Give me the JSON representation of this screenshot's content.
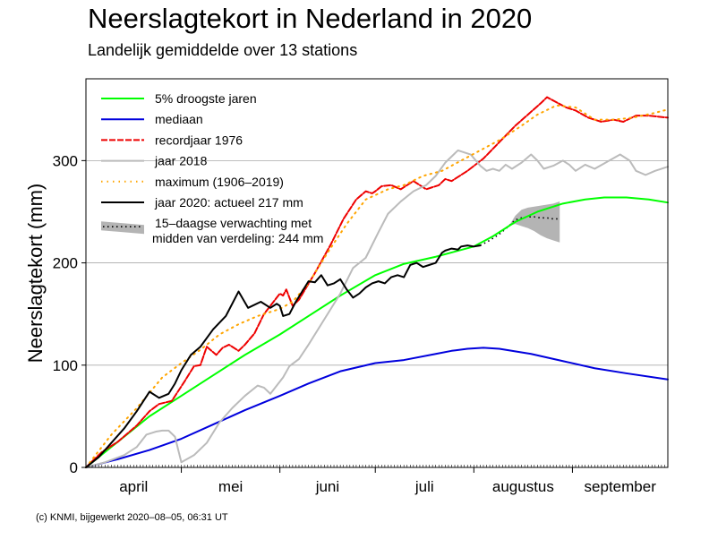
{
  "chart_data": {
    "type": "line",
    "title": "Neerslagtekort in Nederland in 2020",
    "subtitle": "Landelijk gemiddelde over 13 stations",
    "ylabel": "Neerslagtekort (mm)",
    "xlabel": "",
    "ylim": [
      0,
      380
    ],
    "xlim": [
      0,
      183
    ],
    "x_unit": "days since 1 April",
    "yticks": [
      0,
      100,
      200,
      300
    ],
    "month_labels": [
      "april",
      "mei",
      "juni",
      "juli",
      "augustus",
      "september"
    ],
    "month_starts": [
      0,
      30,
      61,
      91,
      122,
      153
    ],
    "legend_position": "top-left",
    "series": [
      {
        "key": "droog5",
        "name": "5% droogste jaren",
        "color": "#00ff00",
        "style": "solid",
        "x": [
          0,
          10,
          20,
          30,
          40,
          50,
          61,
          70,
          80,
          91,
          100,
          110,
          122,
          128,
          135,
          142,
          150,
          157,
          163,
          170,
          177,
          183
        ],
        "y": [
          0,
          25,
          50,
          70,
          90,
          110,
          130,
          148,
          168,
          188,
          199,
          206,
          216,
          226,
          240,
          250,
          258,
          262,
          264,
          264,
          262,
          259
        ]
      },
      {
        "key": "mediaan",
        "name": "mediaan",
        "color": "#0000dd",
        "style": "solid",
        "x": [
          0,
          10,
          20,
          30,
          40,
          50,
          61,
          70,
          80,
          91,
          100,
          110,
          115,
          120,
          125,
          130,
          140,
          150,
          160,
          170,
          183
        ],
        "y": [
          0,
          8,
          17,
          28,
          42,
          56,
          70,
          82,
          94,
          102,
          105,
          111,
          114,
          116,
          117,
          116,
          111,
          104,
          97,
          92,
          86
        ]
      },
      {
        "key": "record1976",
        "name": "recordjaar 1976",
        "color": "#ee0000",
        "style": "dashed",
        "x": [
          0,
          5,
          10,
          16,
          20,
          23,
          27,
          31,
          34,
          36,
          38,
          41,
          43,
          45,
          48,
          50,
          53,
          56,
          59,
          61,
          62,
          63,
          65,
          67,
          72,
          77,
          81,
          85,
          88,
          90,
          91,
          93,
          96,
          99,
          103,
          107,
          111,
          113,
          115,
          120,
          125,
          135,
          143,
          145,
          148,
          151,
          154,
          158,
          162,
          166,
          169,
          173,
          177,
          183
        ],
        "y": [
          0,
          15,
          25,
          41,
          55,
          62,
          65,
          84,
          99,
          100,
          118,
          110,
          117,
          120,
          114,
          120,
          131,
          150,
          162,
          170,
          168,
          174,
          158,
          164,
          190,
          218,
          243,
          262,
          270,
          268,
          270,
          275,
          276,
          272,
          280,
          272,
          276,
          282,
          280,
          290,
          302,
          334,
          356,
          362,
          357,
          352,
          349,
          342,
          338,
          340,
          338,
          344,
          344,
          342
        ]
      },
      {
        "key": "jaar2018",
        "name": "jaar 2018",
        "color": "#bbbbbb",
        "style": "solid",
        "x": [
          0,
          6,
          12,
          16,
          19,
          22,
          24,
          26,
          28,
          30,
          34,
          38,
          42,
          46,
          50,
          54,
          56,
          58,
          62,
          64,
          67,
          70,
          74,
          80,
          84,
          88,
          92,
          95,
          99,
          103,
          107,
          110,
          113,
          117,
          121,
          124,
          126,
          128,
          130,
          132,
          134,
          137,
          140,
          142,
          144,
          147,
          150,
          152,
          154,
          157,
          160,
          164,
          168,
          171,
          173,
          176,
          179,
          183
        ],
        "y": [
          0,
          5,
          12,
          20,
          32,
          35,
          36,
          36,
          30,
          5,
          12,
          24,
          44,
          58,
          70,
          80,
          78,
          72,
          88,
          99,
          106,
          120,
          140,
          170,
          195,
          205,
          230,
          248,
          260,
          270,
          276,
          285,
          298,
          310,
          306,
          295,
          290,
          292,
          290,
          296,
          292,
          298,
          306,
          300,
          292,
          295,
          300,
          296,
          290,
          296,
          292,
          299,
          306,
          300,
          290,
          286,
          290,
          294
        ]
      },
      {
        "key": "maximum",
        "name": "maximum (1906–2019)",
        "color": "#ffa500",
        "style": "dotted",
        "x": [
          0,
          8,
          16,
          24,
          30,
          36,
          42,
          48,
          54,
          61,
          65,
          70,
          76,
          82,
          88,
          95,
          100,
          106,
          112,
          118,
          124,
          130,
          136,
          142,
          148,
          154,
          160,
          166,
          172,
          178,
          183
        ],
        "y": [
          0,
          32,
          58,
          88,
          102,
          115,
          130,
          140,
          148,
          155,
          162,
          180,
          210,
          238,
          262,
          272,
          276,
          285,
          290,
          300,
          310,
          320,
          332,
          345,
          354,
          352,
          340,
          340,
          342,
          346,
          350
        ]
      },
      {
        "key": "jaar2020",
        "name": "jaar 2020: actueel 217 mm",
        "color": "#000000",
        "style": "solid",
        "x": [
          0,
          4,
          8,
          12,
          16,
          20,
          23,
          26,
          28,
          30,
          33,
          36,
          40,
          44,
          48,
          51,
          55,
          58,
          60,
          61,
          62,
          64,
          66,
          70,
          72,
          74,
          76,
          78,
          80,
          82,
          84,
          86,
          88,
          90,
          92,
          94,
          96,
          98,
          100,
          102,
          104,
          106,
          108,
          110,
          112,
          113,
          115,
          117,
          118,
          120,
          122,
          124
        ],
        "y": [
          0,
          10,
          24,
          38,
          55,
          74,
          68,
          72,
          82,
          95,
          110,
          118,
          135,
          148,
          172,
          156,
          162,
          156,
          160,
          158,
          148,
          150,
          162,
          182,
          181,
          188,
          178,
          180,
          184,
          174,
          166,
          170,
          176,
          180,
          182,
          180,
          186,
          188,
          186,
          198,
          200,
          196,
          198,
          200,
          210,
          212,
          214,
          213,
          216,
          217,
          216,
          217
        ]
      }
    ],
    "forecast": {
      "name": "15–daagse verwachting met midden van verdeling: 244 mm",
      "center": {
        "x": [
          124,
          127,
          130,
          133,
          135,
          137,
          139,
          141,
          143,
          145,
          147,
          149
        ],
        "y": [
          217,
          222,
          228,
          236,
          242,
          244,
          245,
          245,
          244,
          244,
          243,
          243
        ]
      },
      "low": {
        "x": [
          133,
          135,
          137,
          139,
          141,
          143,
          145,
          147,
          149
        ],
        "y": [
          236,
          238,
          236,
          234,
          231,
          227,
          224,
          222,
          220
        ]
      },
      "high": {
        "x": [
          133,
          135,
          137,
          139,
          141,
          143,
          145,
          147,
          149
        ],
        "y": [
          236,
          246,
          252,
          254,
          255,
          256,
          257,
          258,
          260
        ]
      }
    },
    "legend": [
      {
        "key": "droog5",
        "label": "5% droogste jaren"
      },
      {
        "key": "mediaan",
        "label": "mediaan"
      },
      {
        "key": "record1976",
        "label": "recordjaar 1976"
      },
      {
        "key": "jaar2018",
        "label": "jaar 2018"
      },
      {
        "key": "maximum",
        "label": "maximum (1906–2019)"
      },
      {
        "key": "jaar2020",
        "label": "jaar 2020: actueel 217 mm"
      },
      {
        "key": "forecast",
        "label": "15–daagse verwachting met",
        "label2": "midden van verdeling: 244 mm"
      }
    ]
  },
  "footer": "(c) KNMI, bijgewerkt 2020–08–05, 06:31 UT"
}
